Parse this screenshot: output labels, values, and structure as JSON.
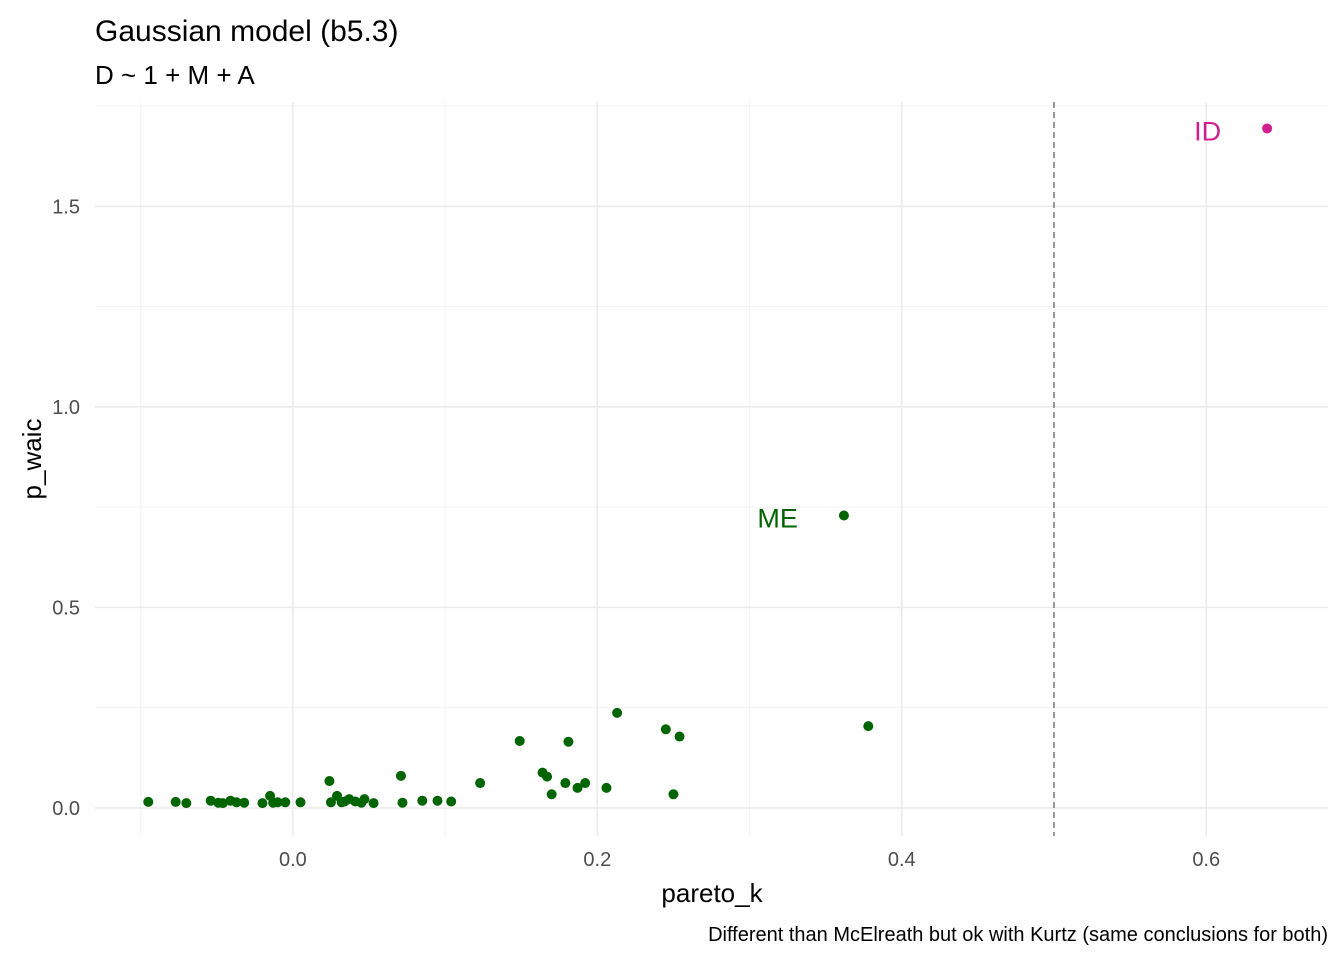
{
  "chart_data": {
    "type": "scatter",
    "title": "Gaussian model (b5.3)",
    "subtitle": "D ~ 1 + M + A",
    "xlabel": "pareto_k",
    "ylabel": "p_waic",
    "caption": "Different than McElreath but ok with Kurtz (same conclusions for both)",
    "xlim": [
      -0.13,
      0.68
    ],
    "ylim": [
      -0.07,
      1.76
    ],
    "x_ticks": [
      "0.0",
      "0.2",
      "0.4",
      "0.6"
    ],
    "x_tick_values": [
      0.0,
      0.2,
      0.4,
      0.6
    ],
    "y_ticks": [
      "0.0",
      "0.5",
      "1.0",
      "1.5"
    ],
    "y_tick_values": [
      0.0,
      0.5,
      1.0,
      1.5
    ],
    "grid": true,
    "reference_line": {
      "axis": "x",
      "value": 0.5,
      "style": "dashed",
      "color": "#808080"
    },
    "point_color": "#006400",
    "highlight_color": "#D02090",
    "points": [
      {
        "x": -0.095,
        "y": 0.015
      },
      {
        "x": -0.077,
        "y": 0.015
      },
      {
        "x": -0.07,
        "y": 0.012
      },
      {
        "x": -0.054,
        "y": 0.018
      },
      {
        "x": -0.049,
        "y": 0.013
      },
      {
        "x": -0.046,
        "y": 0.012
      },
      {
        "x": -0.041,
        "y": 0.018
      },
      {
        "x": -0.037,
        "y": 0.014
      },
      {
        "x": -0.032,
        "y": 0.013
      },
      {
        "x": -0.02,
        "y": 0.012
      },
      {
        "x": -0.015,
        "y": 0.03
      },
      {
        "x": -0.013,
        "y": 0.013
      },
      {
        "x": -0.01,
        "y": 0.014
      },
      {
        "x": -0.005,
        "y": 0.014
      },
      {
        "x": 0.005,
        "y": 0.014
      },
      {
        "x": 0.024,
        "y": 0.067
      },
      {
        "x": 0.025,
        "y": 0.014
      },
      {
        "x": 0.029,
        "y": 0.03
      },
      {
        "x": 0.032,
        "y": 0.014
      },
      {
        "x": 0.034,
        "y": 0.016
      },
      {
        "x": 0.037,
        "y": 0.022
      },
      {
        "x": 0.041,
        "y": 0.016
      },
      {
        "x": 0.045,
        "y": 0.013
      },
      {
        "x": 0.047,
        "y": 0.022
      },
      {
        "x": 0.053,
        "y": 0.012
      },
      {
        "x": 0.071,
        "y": 0.08
      },
      {
        "x": 0.072,
        "y": 0.013
      },
      {
        "x": 0.085,
        "y": 0.018
      },
      {
        "x": 0.095,
        "y": 0.018
      },
      {
        "x": 0.104,
        "y": 0.016
      },
      {
        "x": 0.123,
        "y": 0.062
      },
      {
        "x": 0.149,
        "y": 0.167
      },
      {
        "x": 0.164,
        "y": 0.088
      },
      {
        "x": 0.167,
        "y": 0.078
      },
      {
        "x": 0.17,
        "y": 0.034
      },
      {
        "x": 0.179,
        "y": 0.062
      },
      {
        "x": 0.181,
        "y": 0.165
      },
      {
        "x": 0.187,
        "y": 0.05
      },
      {
        "x": 0.192,
        "y": 0.062
      },
      {
        "x": 0.206,
        "y": 0.05
      },
      {
        "x": 0.213,
        "y": 0.237
      },
      {
        "x": 0.245,
        "y": 0.196
      },
      {
        "x": 0.25,
        "y": 0.034
      },
      {
        "x": 0.254,
        "y": 0.178
      },
      {
        "x": 0.378,
        "y": 0.204
      }
    ],
    "labeled_points": [
      {
        "label": "ME",
        "x": 0.362,
        "y": 0.729,
        "color": "#006400"
      },
      {
        "label": "ID",
        "x": 0.64,
        "y": 1.694,
        "color": "#D02090"
      }
    ]
  }
}
